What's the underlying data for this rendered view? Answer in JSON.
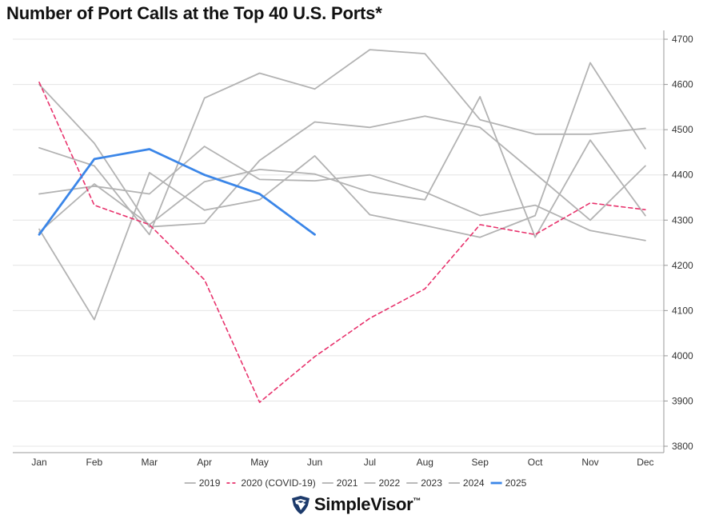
{
  "colors": {
    "grey": "#b3b3b3",
    "covid": "#e8336d",
    "current": "#3b86e8",
    "grid": "#e4e4e4",
    "axis": "#999999"
  },
  "brand": {
    "name": "SimpleVisor",
    "tm": "™",
    "icon": "eagle-icon"
  },
  "chart_data": {
    "type": "line",
    "title": "Number of Port Calls at the Top 40 U.S. Ports*",
    "categories": [
      "Jan",
      "Feb",
      "Mar",
      "Apr",
      "May",
      "Jun",
      "Jul",
      "Aug",
      "Sep",
      "Oct",
      "Nov",
      "Dec"
    ],
    "y_axis": {
      "position": "right",
      "min": 3780,
      "max": 4710,
      "ticks": [
        3800,
        3900,
        4000,
        4100,
        4200,
        4300,
        4400,
        4500,
        4600,
        4700
      ]
    },
    "grid": true,
    "legend": "bottom-center",
    "series": [
      {
        "name": "2019",
        "style": "grey",
        "values": [
          4460,
          4420,
          4268,
          4570,
          4625,
          4590,
          4677,
          4668,
          4522,
          4490,
          4490,
          4503
        ]
      },
      {
        "name": "2020 (COVID-19)",
        "style": "covid",
        "values": [
          4605,
          4333,
          4290,
          4168,
          3897,
          3998,
          4083,
          4148,
          4290,
          4268,
          4338,
          4323
        ]
      },
      {
        "name": "2021",
        "style": "grey",
        "values": [
          4358,
          4375,
          4358,
          4463,
          4390,
          4387,
          4400,
          4362,
          4310,
          4333,
          4277,
          4255
        ]
      },
      {
        "name": "2022",
        "style": "grey",
        "values": [
          4280,
          4080,
          4405,
          4322,
          4345,
          4442,
          4312,
          4288,
          4262,
          4310,
          4648,
          4458
        ]
      },
      {
        "name": "2023",
        "style": "grey",
        "values": [
          4273,
          4380,
          4290,
          4385,
          4412,
          4402,
          4362,
          4345,
          4573,
          4262,
          4477,
          4310
        ]
      },
      {
        "name": "2024",
        "style": "grey",
        "values": [
          4600,
          4470,
          4285,
          4293,
          4432,
          4517,
          4505,
          4530,
          4505,
          4403,
          4300,
          4420
        ]
      },
      {
        "name": "2025",
        "style": "current",
        "values": [
          4268,
          4435,
          4457,
          4400,
          4358,
          4268,
          null,
          null,
          null,
          null,
          null,
          null
        ]
      }
    ]
  }
}
